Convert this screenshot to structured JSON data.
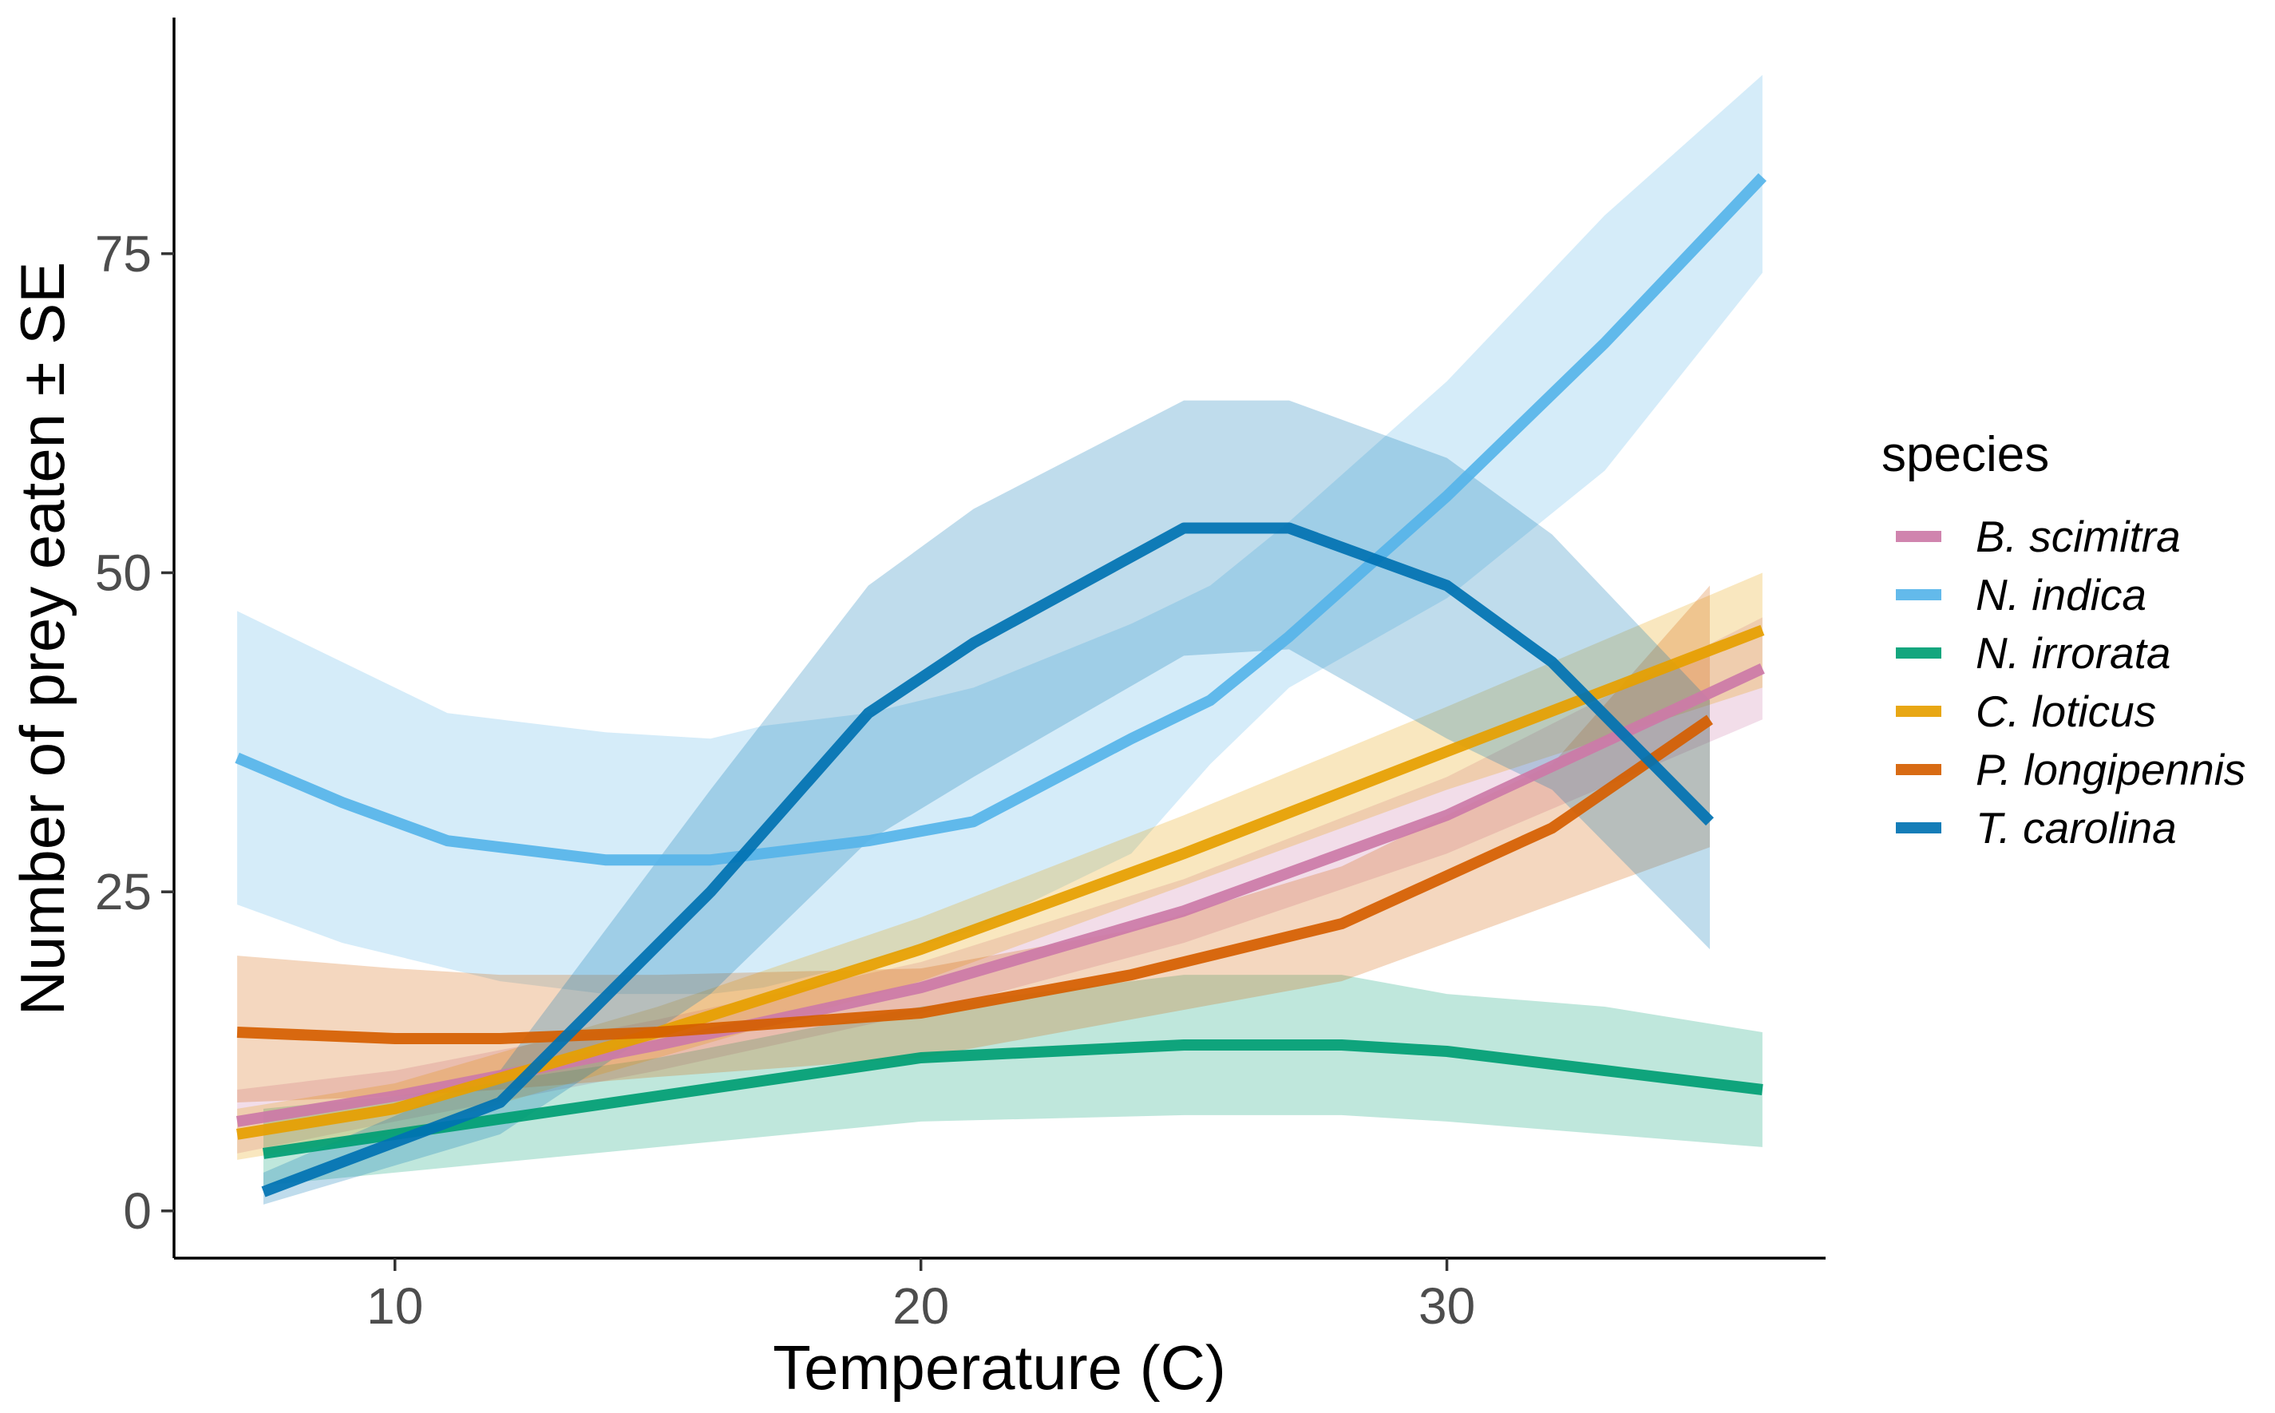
{
  "chart_data": {
    "type": "line",
    "title": "",
    "xlabel": "Temperature (C)",
    "ylabel": "Number of prey eaten ± SE",
    "xlim": [
      5.8,
      37.2
    ],
    "ylim": [
      -3.7,
      93.5
    ],
    "x_ticks": [
      10,
      20,
      30
    ],
    "y_ticks": [
      0,
      25,
      50,
      75
    ],
    "grid": false,
    "legend": {
      "title": "species",
      "position": "right"
    },
    "series": [
      {
        "name": "B. scimitra",
        "color": "#CC79A7",
        "x": [
          7,
          10,
          15,
          20,
          25,
          30,
          36
        ],
        "y": [
          7,
          9,
          13,
          17.5,
          23.5,
          31,
          42.5
        ],
        "lower": [
          4.5,
          7,
          11,
          15.5,
          21,
          28,
          38.5
        ],
        "upper": [
          9.5,
          11,
          15,
          19.5,
          26,
          34,
          46.5
        ]
      },
      {
        "name": "N. indica",
        "color": "#56B4E9",
        "x": [
          7,
          9,
          11,
          12,
          14,
          16,
          17,
          19,
          21,
          24,
          25.5,
          27,
          30,
          33,
          36
        ],
        "y": [
          35.5,
          32,
          29,
          28.5,
          27.5,
          27.5,
          28,
          29,
          30.5,
          37,
          40,
          45,
          56,
          68,
          81
        ],
        "lower": [
          24,
          21,
          19,
          18,
          17,
          17,
          17.5,
          19.5,
          22,
          28,
          35,
          41,
          48,
          58,
          73.5
        ],
        "upper": [
          47,
          43,
          39,
          38.5,
          37.5,
          37,
          38,
          39,
          41,
          46,
          49,
          54,
          65,
          78,
          89
        ]
      },
      {
        "name": "N. irrorata",
        "color": "#009E73",
        "x": [
          7.5,
          10,
          15,
          20,
          25,
          28,
          30,
          33,
          36
        ],
        "y": [
          4.5,
          6,
          9,
          12,
          13,
          13,
          12.5,
          11,
          9.5
        ],
        "lower": [
          2,
          3,
          5,
          7,
          7.5,
          7.5,
          7,
          6,
          5
        ],
        "upper": [
          8,
          9,
          12,
          16,
          18.5,
          18.5,
          17,
          16,
          14
        ]
      },
      {
        "name": "C. loticus",
        "color": "#E69F00",
        "x": [
          7,
          10,
          15,
          20,
          25,
          30,
          36
        ],
        "y": [
          6,
          8,
          14,
          20.5,
          28,
          36,
          45.5
        ],
        "lower": [
          4,
          6,
          12,
          18,
          25.5,
          33,
          41
        ],
        "upper": [
          8,
          10,
          16,
          23,
          31,
          39.5,
          50
        ]
      },
      {
        "name": "P. longipennis",
        "color": "#D55E00",
        "x": [
          7,
          10,
          12,
          15,
          20,
          24,
          28,
          32,
          35
        ],
        "y": [
          14,
          13.5,
          13.5,
          14,
          15.5,
          18.5,
          22.5,
          30,
          38.5
        ],
        "lower": [
          8.5,
          9,
          9.5,
          10.5,
          12,
          15,
          18,
          24,
          28.5
        ],
        "upper": [
          20,
          19,
          18.5,
          18.5,
          19,
          22,
          27,
          35,
          49
        ]
      },
      {
        "name": "T. carolina",
        "color": "#0072B2",
        "x": [
          7.5,
          12,
          16,
          19,
          21,
          25,
          27,
          30,
          32,
          35
        ],
        "y": [
          1.5,
          8.5,
          25,
          39,
          44.5,
          53.5,
          53.5,
          49,
          43,
          30.5
        ],
        "lower": [
          0.5,
          6,
          17,
          29,
          34,
          43.5,
          44,
          37,
          33,
          20.5
        ],
        "upper": [
          3,
          11,
          33,
          49,
          55,
          63.5,
          63.5,
          59,
          53,
          40
        ]
      }
    ]
  }
}
